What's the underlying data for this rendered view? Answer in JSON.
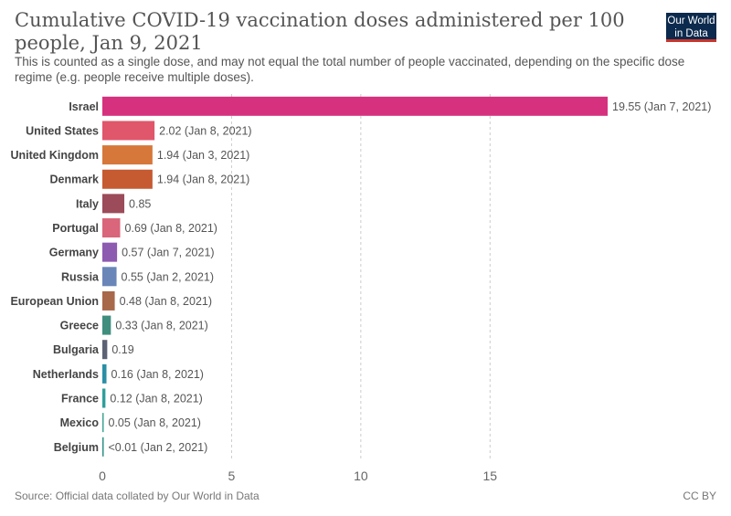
{
  "header": {
    "title": "Cumulative COVID-19 vaccination doses administered per 100 people, Jan 9, 2021",
    "subtitle": "This is counted as a single dose, and may not equal the total number of people vaccinated, depending on the specific dose regime (e.g. people receive multiple doses).",
    "logo_line1": "Our World",
    "logo_line2": "in Data"
  },
  "footer": {
    "source": "Source: Official data collated by Our World in Data",
    "license": "CC BY"
  },
  "chart_data": {
    "type": "bar",
    "orientation": "horizontal",
    "categories": [
      "Israel",
      "United States",
      "United Kingdom",
      "Denmark",
      "Italy",
      "Portugal",
      "Germany",
      "Russia",
      "European Union",
      "Greece",
      "Bulgaria",
      "Netherlands",
      "France",
      "Mexico",
      "Belgium"
    ],
    "values": [
      19.55,
      2.02,
      1.94,
      1.94,
      0.85,
      0.69,
      0.57,
      0.55,
      0.48,
      0.33,
      0.19,
      0.16,
      0.12,
      0.05,
      0.005
    ],
    "value_labels": [
      "19.55 (Jan 7, 2021)",
      "2.02 (Jan 8, 2021)",
      "1.94 (Jan 3, 2021)",
      "1.94 (Jan 8, 2021)",
      "0.85",
      "0.69 (Jan 8, 2021)",
      "0.57 (Jan 7, 2021)",
      "0.55 (Jan 2, 2021)",
      "0.48 (Jan 8, 2021)",
      "0.33 (Jan 8, 2021)",
      "0.19",
      "0.16 (Jan 8, 2021)",
      "0.12 (Jan 8, 2021)",
      "0.05 (Jan 8, 2021)",
      "<0.01 (Jan 2, 2021)"
    ],
    "colors": [
      "#d6317e",
      "#e0566a",
      "#d6783a",
      "#c65a30",
      "#9b4b59",
      "#d9667a",
      "#8d5bb0",
      "#6a86b8",
      "#a8684a",
      "#3f8e7e",
      "#5b6273",
      "#2a8fa6",
      "#2e9e9a",
      "#3fa58f",
      "#2f8f84"
    ],
    "xticks": [
      0,
      5,
      10,
      15
    ],
    "xlim": [
      0,
      19.55
    ],
    "grid": true
  }
}
